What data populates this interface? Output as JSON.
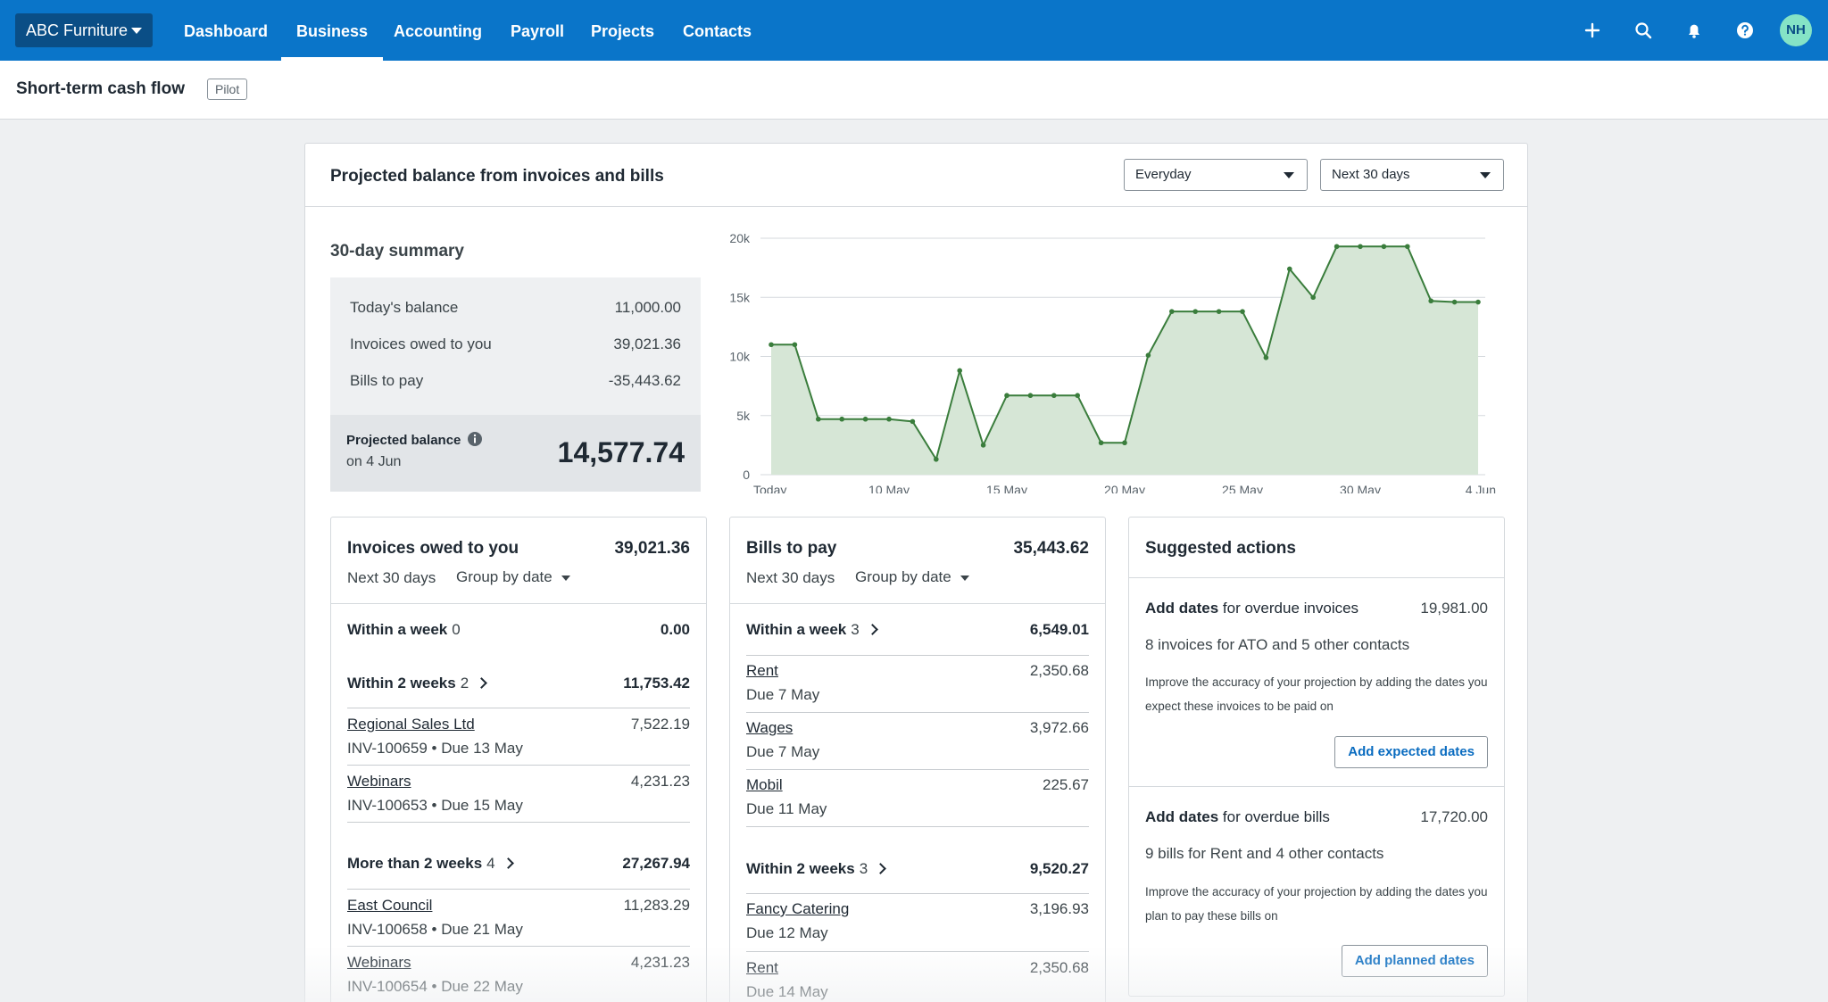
{
  "nav": {
    "org": "ABC Furniture",
    "items": [
      "Dashboard",
      "Business",
      "Accounting",
      "Payroll",
      "Projects",
      "Contacts"
    ],
    "active": "Business",
    "avatar": "NH",
    "icons": [
      "plus-icon",
      "search-icon",
      "bell-icon",
      "help-icon"
    ]
  },
  "page": {
    "title": "Short-term cash flow",
    "badge": "Pilot"
  },
  "card": {
    "title": "Projected balance from invoices and bills",
    "account_select": "Everyday",
    "period_select": "Next 30 days"
  },
  "summary": {
    "title": "30-day summary",
    "rows": [
      {
        "label": "Today's balance",
        "value": "11,000.00"
      },
      {
        "label": "Invoices owed to you",
        "value": "39,021.36"
      },
      {
        "label": "Bills to pay",
        "value": "-35,443.62"
      }
    ],
    "projected_label": "Projected balance",
    "projected_date": "on 4 Jun",
    "projected_value": "14,577.74"
  },
  "chart_data": {
    "type": "area",
    "x_ticks": [
      "Today",
      "10 May",
      "15 May",
      "20 May",
      "25 May",
      "30 May",
      "4 Jun"
    ],
    "y_ticks": [
      "0",
      "5k",
      "10k",
      "15k",
      "20k"
    ],
    "ylim": [
      0,
      20000
    ],
    "series": [
      {
        "values": [
          11000,
          11000,
          4700,
          4700,
          4700,
          4700,
          4500,
          1300,
          8800,
          2500,
          6700,
          6700,
          6700,
          6700,
          2700,
          2700,
          10100,
          13800,
          13800,
          13800,
          13800,
          9900,
          17400,
          15000,
          19300,
          19300,
          19300,
          19300,
          14700,
          14600,
          14600
        ]
      }
    ],
    "colors": {
      "line": "#3a7d3c",
      "fill": "#d6e6d6"
    },
    "grid": true
  },
  "invoices": {
    "title": "Invoices owed to you",
    "total": "39,021.36",
    "period": "Next 30 days",
    "group": "Group by date",
    "groups": [
      {
        "label": "Within a week",
        "count": "0",
        "value": "0.00",
        "items": []
      },
      {
        "label": "Within 2 weeks",
        "count": "2",
        "value": "11,753.42",
        "items": [
          {
            "name": "Regional Sales Ltd",
            "amount": "7,522.19",
            "meta": "INV-100659 • Due 13 May"
          },
          {
            "name": "Webinars",
            "amount": "4,231.23",
            "meta": "INV-100653 • Due 15 May"
          }
        ]
      },
      {
        "label": "More than 2 weeks",
        "count": "4",
        "value": "27,267.94",
        "items": [
          {
            "name": "East Council",
            "amount": "11,283.29",
            "meta": "INV-100658 • Due 21 May"
          },
          {
            "name": "Webinars",
            "amount": "4,231.23",
            "meta": "INV-100654 • Due 22 May"
          }
        ]
      }
    ]
  },
  "bills": {
    "title": "Bills to pay",
    "total": "35,443.62",
    "period": "Next 30 days",
    "group": "Group by date",
    "groups": [
      {
        "label": "Within a week",
        "count": "3",
        "value": "6,549.01",
        "items": [
          {
            "name": "Rent",
            "amount": "2,350.68",
            "meta": "Due 7 May"
          },
          {
            "name": "Wages",
            "amount": "3,972.66",
            "meta": "Due 7 May"
          },
          {
            "name": "Mobil",
            "amount": "225.67",
            "meta": "Due 11 May"
          }
        ]
      },
      {
        "label": "Within 2 weeks",
        "count": "3",
        "value": "9,520.27",
        "items": [
          {
            "name": "Fancy Catering",
            "amount": "3,196.93",
            "meta": "Due 12 May"
          },
          {
            "name": "Rent",
            "amount": "2,350.68",
            "meta": "Due 14 May"
          }
        ]
      }
    ]
  },
  "actions": {
    "title": "Suggested actions",
    "items": [
      {
        "bold": "Add dates",
        "rest": " for overdue invoices",
        "amount": "19,981.00",
        "line": "8 invoices for ATO and 5 other contacts",
        "desc": "Improve the accuracy of your projection by adding the dates you expect these invoices to be paid on",
        "button": "Add expected dates"
      },
      {
        "bold": "Add dates",
        "rest": " for overdue bills",
        "amount": "17,720.00",
        "line": "9 bills for Rent and 4 other contacts",
        "desc": "Improve the accuracy of your projection by adding the dates you plan to pay these bills on",
        "button": "Add planned dates"
      }
    ]
  }
}
